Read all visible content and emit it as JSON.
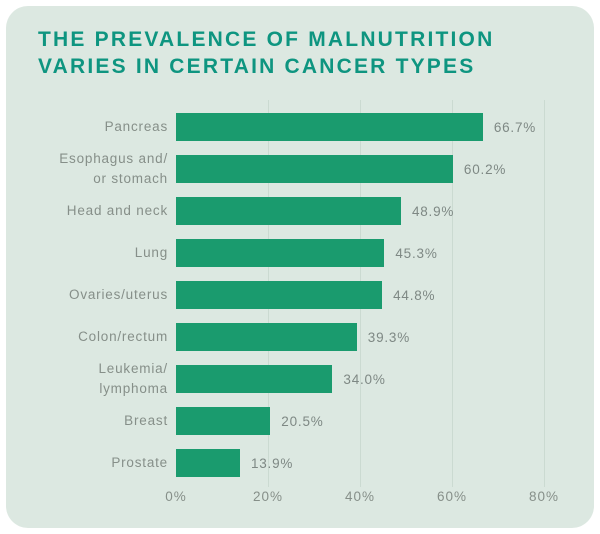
{
  "card": {
    "title_line1": "THE PREVALENCE OF MALNUTRITION",
    "title_line2": "VARIES IN CERTAIN CANCER TYPES"
  },
  "colors": {
    "page_background": "#ffffff",
    "card_background": "#dce8e1",
    "title_text": "#0e9580",
    "bar_fill": "#1a9b6e",
    "category_label_text": "#868f89",
    "value_label_text": "#7e8884",
    "axis_tick_text": "#868f89",
    "gridline": "#cbdad1"
  },
  "chart_data": {
    "type": "bar",
    "orientation": "horizontal",
    "title": "THE PREVALENCE OF MALNUTRITION VARIES IN CERTAIN CANCER TYPES",
    "categories": [
      "Pancreas",
      "Esophagus and/or stomach",
      "Head and neck",
      "Lung",
      "Ovaries/uterus",
      "Colon/rectum",
      "Leukemia/lymphoma",
      "Breast",
      "Prostate"
    ],
    "category_label_lines": [
      [
        "Pancreas"
      ],
      [
        "Esophagus and/",
        "or stomach"
      ],
      [
        "Head and neck"
      ],
      [
        "Lung"
      ],
      [
        "Ovaries/uterus"
      ],
      [
        "Colon/rectum"
      ],
      [
        "Leukemia/",
        "lymphoma"
      ],
      [
        "Breast"
      ],
      [
        "Prostate"
      ]
    ],
    "values": [
      66.7,
      60.2,
      48.9,
      45.3,
      44.8,
      39.3,
      34.0,
      20.5,
      13.9
    ],
    "value_labels": [
      "66.7%",
      "60.2%",
      "48.9%",
      "45.3%",
      "44.8%",
      "39.3%",
      "34.0%",
      "20.5%",
      "13.9%"
    ],
    "unit": "%",
    "xlabel": "",
    "ylabel": "",
    "xlim": [
      0,
      85
    ],
    "x_ticks": [
      0,
      20,
      40,
      60,
      80
    ],
    "x_tick_labels": [
      "0%",
      "20%",
      "40%",
      "60%",
      "80%"
    ],
    "grid": "vertical-gridlines-at-20-40-60-80",
    "legend": "none"
  }
}
